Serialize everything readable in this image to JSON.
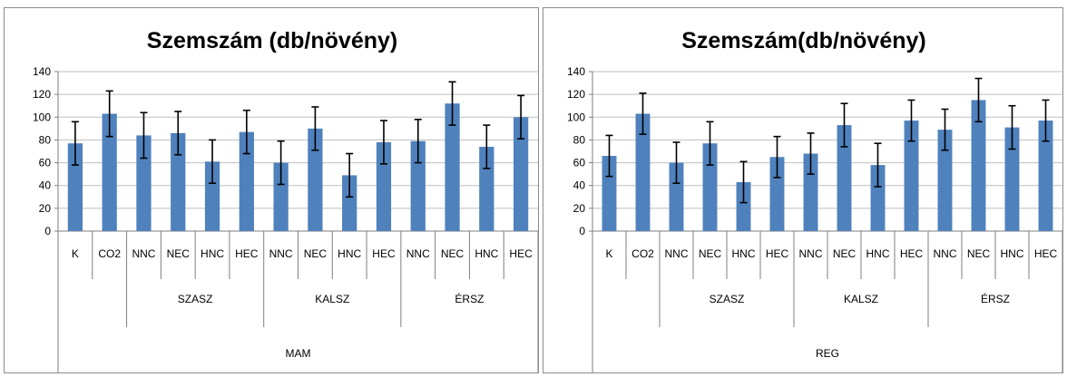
{
  "colors": {
    "bar": "#4f81bd",
    "error": "#000000",
    "grid": "#bfbfbf",
    "axis": "#7f7f7f"
  },
  "chart_data": [
    {
      "type": "bar",
      "title": "Szemszám (db/növény)",
      "ylim": [
        0,
        140
      ],
      "yticks": [
        0,
        20,
        40,
        60,
        80,
        100,
        120,
        140
      ],
      "grid": true,
      "categories": [
        "K",
        "CO2",
        "NNC",
        "NEC",
        "HNC",
        "HEC",
        "NNC",
        "NEC",
        "HNC",
        "HEC",
        "NNC",
        "NEC",
        "HNC",
        "HEC"
      ],
      "groups": [
        {
          "label": "SZASZ",
          "start": 2,
          "end": 5
        },
        {
          "label": "KALSZ",
          "start": 6,
          "end": 9
        },
        {
          "label": "ÉRSZ",
          "start": 10,
          "end": 13
        }
      ],
      "top_group": "MAM",
      "values": [
        77,
        103,
        84,
        86,
        61,
        87,
        60,
        90,
        49,
        78,
        79,
        112,
        74,
        100
      ],
      "errors": [
        19,
        20,
        20,
        19,
        19,
        19,
        19,
        19,
        19,
        19,
        19,
        19,
        19,
        19
      ]
    },
    {
      "type": "bar",
      "title": "Szemszám(db/növény)",
      "ylim": [
        0,
        140
      ],
      "yticks": [
        0,
        20,
        40,
        60,
        80,
        100,
        120,
        140
      ],
      "grid": true,
      "categories": [
        "K",
        "CO2",
        "NNC",
        "NEC",
        "HNC",
        "HEC",
        "NNC",
        "NEC",
        "HNC",
        "HEC",
        "NNC",
        "NEC",
        "HNC",
        "HEC"
      ],
      "groups": [
        {
          "label": "SZASZ",
          "start": 2,
          "end": 5
        },
        {
          "label": "KALSZ",
          "start": 6,
          "end": 9
        },
        {
          "label": "ÉRSZ",
          "start": 10,
          "end": 13
        }
      ],
      "top_group": "REG",
      "values": [
        66,
        103,
        60,
        77,
        43,
        65,
        68,
        93,
        58,
        97,
        89,
        115,
        91,
        97
      ],
      "errors": [
        18,
        18,
        18,
        19,
        18,
        18,
        18,
        19,
        19,
        18,
        18,
        19,
        19,
        18
      ]
    }
  ]
}
